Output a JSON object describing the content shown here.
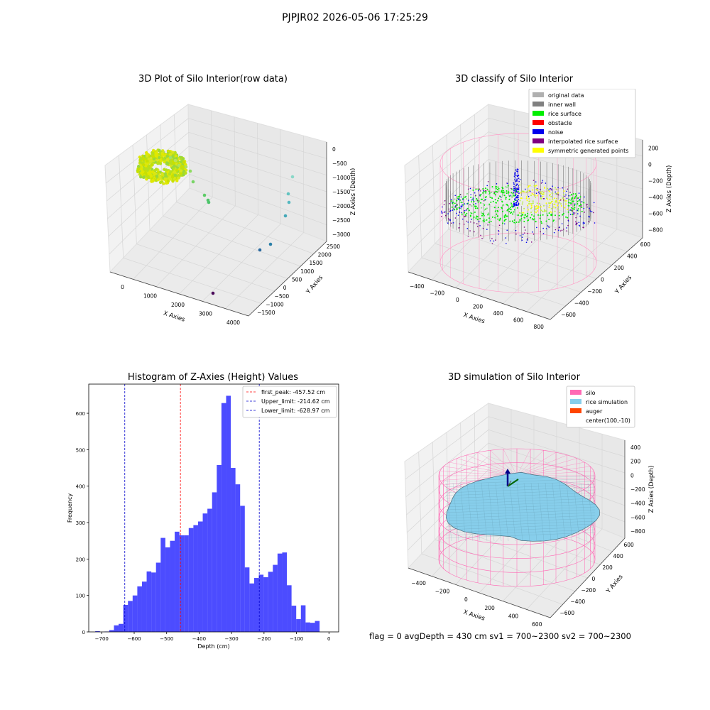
{
  "suptitle": "PJPJR02 2026-05-06 17:25:29",
  "panels": {
    "raw": {
      "title": "3D Plot of Silo Interior(row data)",
      "xlabel": "X Axies",
      "ylabel": "Y Axies",
      "zlabel": "Z Axies (Depth)",
      "xticks": [
        "0",
        "1000",
        "2000",
        "3000",
        "4000"
      ],
      "yticks": [
        "−1500",
        "−1000",
        "−500",
        "0",
        "500",
        "1000",
        "1500",
        "2000",
        "2500"
      ],
      "zticks": [
        "0",
        "−500",
        "−1000",
        "−1500",
        "−2000",
        "−2500",
        "−3000"
      ]
    },
    "classify": {
      "title": "3D classify of Silo Interior",
      "xlabel": "X Axies",
      "ylabel": "Y Axies",
      "zlabel": "Z Axies (Depth)",
      "xticks": [
        "−400",
        "−200",
        "0",
        "200",
        "400",
        "600",
        "800"
      ],
      "yticks": [
        "−600",
        "−400",
        "−200",
        "0",
        "200",
        "400",
        "600"
      ],
      "zticks": [
        "200",
        "0",
        "−200",
        "−400",
        "−600",
        "−800"
      ],
      "legend": [
        {
          "label": "original data",
          "color": "#b0b0b0"
        },
        {
          "label": "inner wall",
          "color": "#808080"
        },
        {
          "label": "rice surface",
          "color": "#00ee00"
        },
        {
          "label": "obstacle",
          "color": "#ff0000"
        },
        {
          "label": "noise",
          "color": "#0000ee"
        },
        {
          "label": "interpolated rice surface",
          "color": "#800080"
        },
        {
          "label": "symmetric generated points",
          "color": "#ffff00"
        }
      ]
    },
    "simulation": {
      "title": "3D simulation of Silo Interior",
      "xlabel": "X Axies",
      "ylabel": "Y Axies",
      "zlabel": "Z Axies (Depth)",
      "xticks": [
        "−400",
        "−200",
        "0",
        "200",
        "400",
        "600"
      ],
      "yticks": [
        "−600",
        "−400",
        "−200",
        "0",
        "200",
        "400",
        "600"
      ],
      "zticks": [
        "400",
        "200",
        "0",
        "−200",
        "−400",
        "−600",
        "−800"
      ],
      "legend": [
        {
          "label": "silo",
          "color": "#ff69b4"
        },
        {
          "label": "rice simulation",
          "color": "#87ceeb"
        },
        {
          "label": "auger",
          "color": "#ff4500"
        },
        {
          "label": "center(100,-10)",
          "color": ""
        }
      ]
    }
  },
  "chart_data": {
    "type": "bar",
    "title": "Histogram of Z-Axies (Height) Values",
    "xlabel": "Depth (cm)",
    "ylabel": "Frequency",
    "xlim": [
      -740,
      30
    ],
    "ylim": [
      0,
      680
    ],
    "xticks": [
      -700,
      -600,
      -500,
      -400,
      -300,
      -200,
      -100,
      0
    ],
    "yticks": [
      0,
      100,
      200,
      300,
      400,
      500,
      600
    ],
    "bar_color": "#0000ff",
    "bin_start": -720,
    "bin_width": 14.4,
    "values": [
      2,
      0,
      1,
      5,
      18,
      22,
      74,
      85,
      100,
      125,
      138,
      166,
      163,
      190,
      258,
      232,
      250,
      275,
      265,
      265,
      285,
      293,
      303,
      325,
      338,
      383,
      458,
      628,
      648,
      450,
      405,
      346,
      177,
      133,
      148,
      157,
      150,
      165,
      184,
      215,
      218,
      128,
      72,
      35,
      73,
      26,
      25,
      30
    ],
    "vlines": [
      {
        "label": "first_peak: -457.52 cm",
        "x": -457.52,
        "color": "#ff0000"
      },
      {
        "label": "Upper_limit: -214.62 cm",
        "x": -214.62,
        "color": "#0000cc"
      },
      {
        "label": "Lower_limit: -628.97 cm",
        "x": -628.97,
        "color": "#0000cc"
      }
    ]
  },
  "footer": "flag = 0     avgDepth = 430 cm  sv1 = 700~2300  sv2 = 700~2300"
}
